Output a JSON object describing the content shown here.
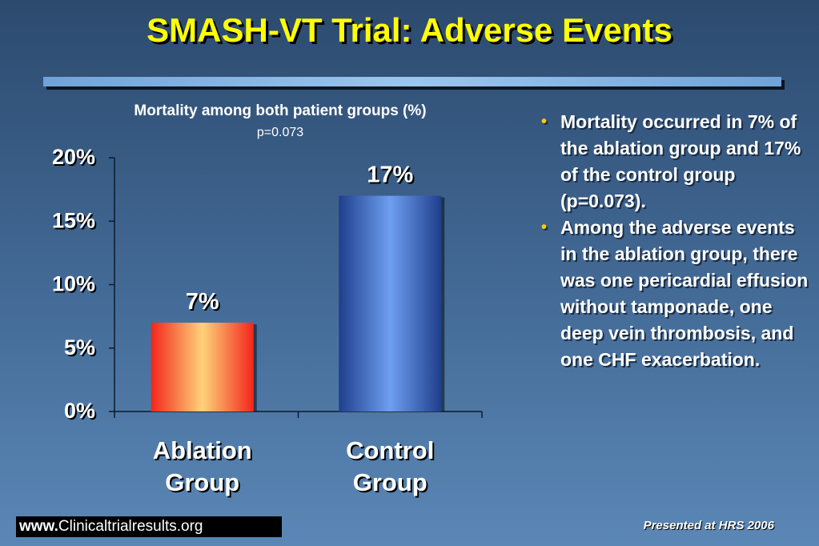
{
  "slide": {
    "title": "SMASH-VT Trial: Adverse Events"
  },
  "chart_data": {
    "type": "bar",
    "title": "Mortality among both patient groups (%)",
    "subtitle": "p=0.073",
    "categories": [
      "Ablation Group",
      "Control Group"
    ],
    "category_lines": [
      [
        "Ablation",
        "Group"
      ],
      [
        "Control",
        "Group"
      ]
    ],
    "values": [
      7,
      17
    ],
    "value_labels": [
      "7%",
      "17%"
    ],
    "ylim": [
      0,
      20
    ],
    "yticks": [
      0,
      5,
      10,
      15,
      20
    ],
    "ytick_labels": [
      "0%",
      "5%",
      "10%",
      "15%",
      "20%"
    ],
    "grid": false,
    "legend": "none",
    "bar_colors": [
      {
        "edge": "#f2261b",
        "center": "#ffd27a"
      },
      {
        "edge": "#1f3f8c",
        "center": "#6e9ef0"
      }
    ]
  },
  "bullets": [
    "Mortality occurred in 7% of the ablation group and 17% of the control group (p=0.073).",
    "Among the adverse events in the ablation group, there was one pericardial effusion without tamponade, one deep vein thrombosis, and one CHF exacerbation."
  ],
  "footer": {
    "url_prefix": "www.",
    "url_rest": "Clinicaltrialresults.org",
    "note": "Presented at HRS 2006"
  },
  "colors": {
    "title": "#ffff00",
    "bullet_marker": "#ffcc00",
    "background_top": "#2c4a6e",
    "background_bottom": "#5b87b6"
  }
}
